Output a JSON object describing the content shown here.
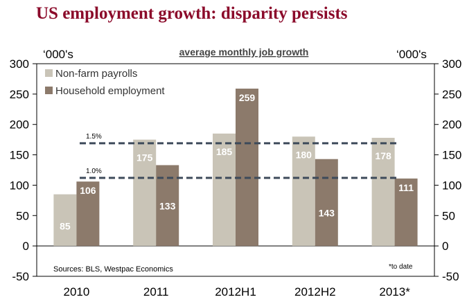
{
  "header": {
    "title": "US employment growth: disparity persists"
  },
  "chart_data": {
    "type": "bar",
    "subtitle": "average monthly job growth",
    "left_unit": "‘000's",
    "right_unit": "‘000's",
    "categories": [
      "2010",
      "2011",
      "2012H1",
      "2012H2",
      "2013*"
    ],
    "series": [
      {
        "name": "Non-farm payrolls",
        "color": "#C9C4B7",
        "values": [
          85,
          175,
          185,
          180,
          178
        ]
      },
      {
        "name": "Household employment",
        "color": "#8C7A6B",
        "values": [
          106,
          133,
          259,
          143,
          111
        ]
      }
    ],
    "ylim": [
      -50,
      300
    ],
    "yticks": [
      -50,
      0,
      50,
      100,
      150,
      200,
      250,
      300
    ],
    "reference_lines": [
      {
        "label": "1.5%",
        "value": 169
      },
      {
        "label": "1.0%",
        "value": 112
      }
    ],
    "source": "Sources: BLS, Westpac Economics",
    "footnote": "*to date"
  }
}
